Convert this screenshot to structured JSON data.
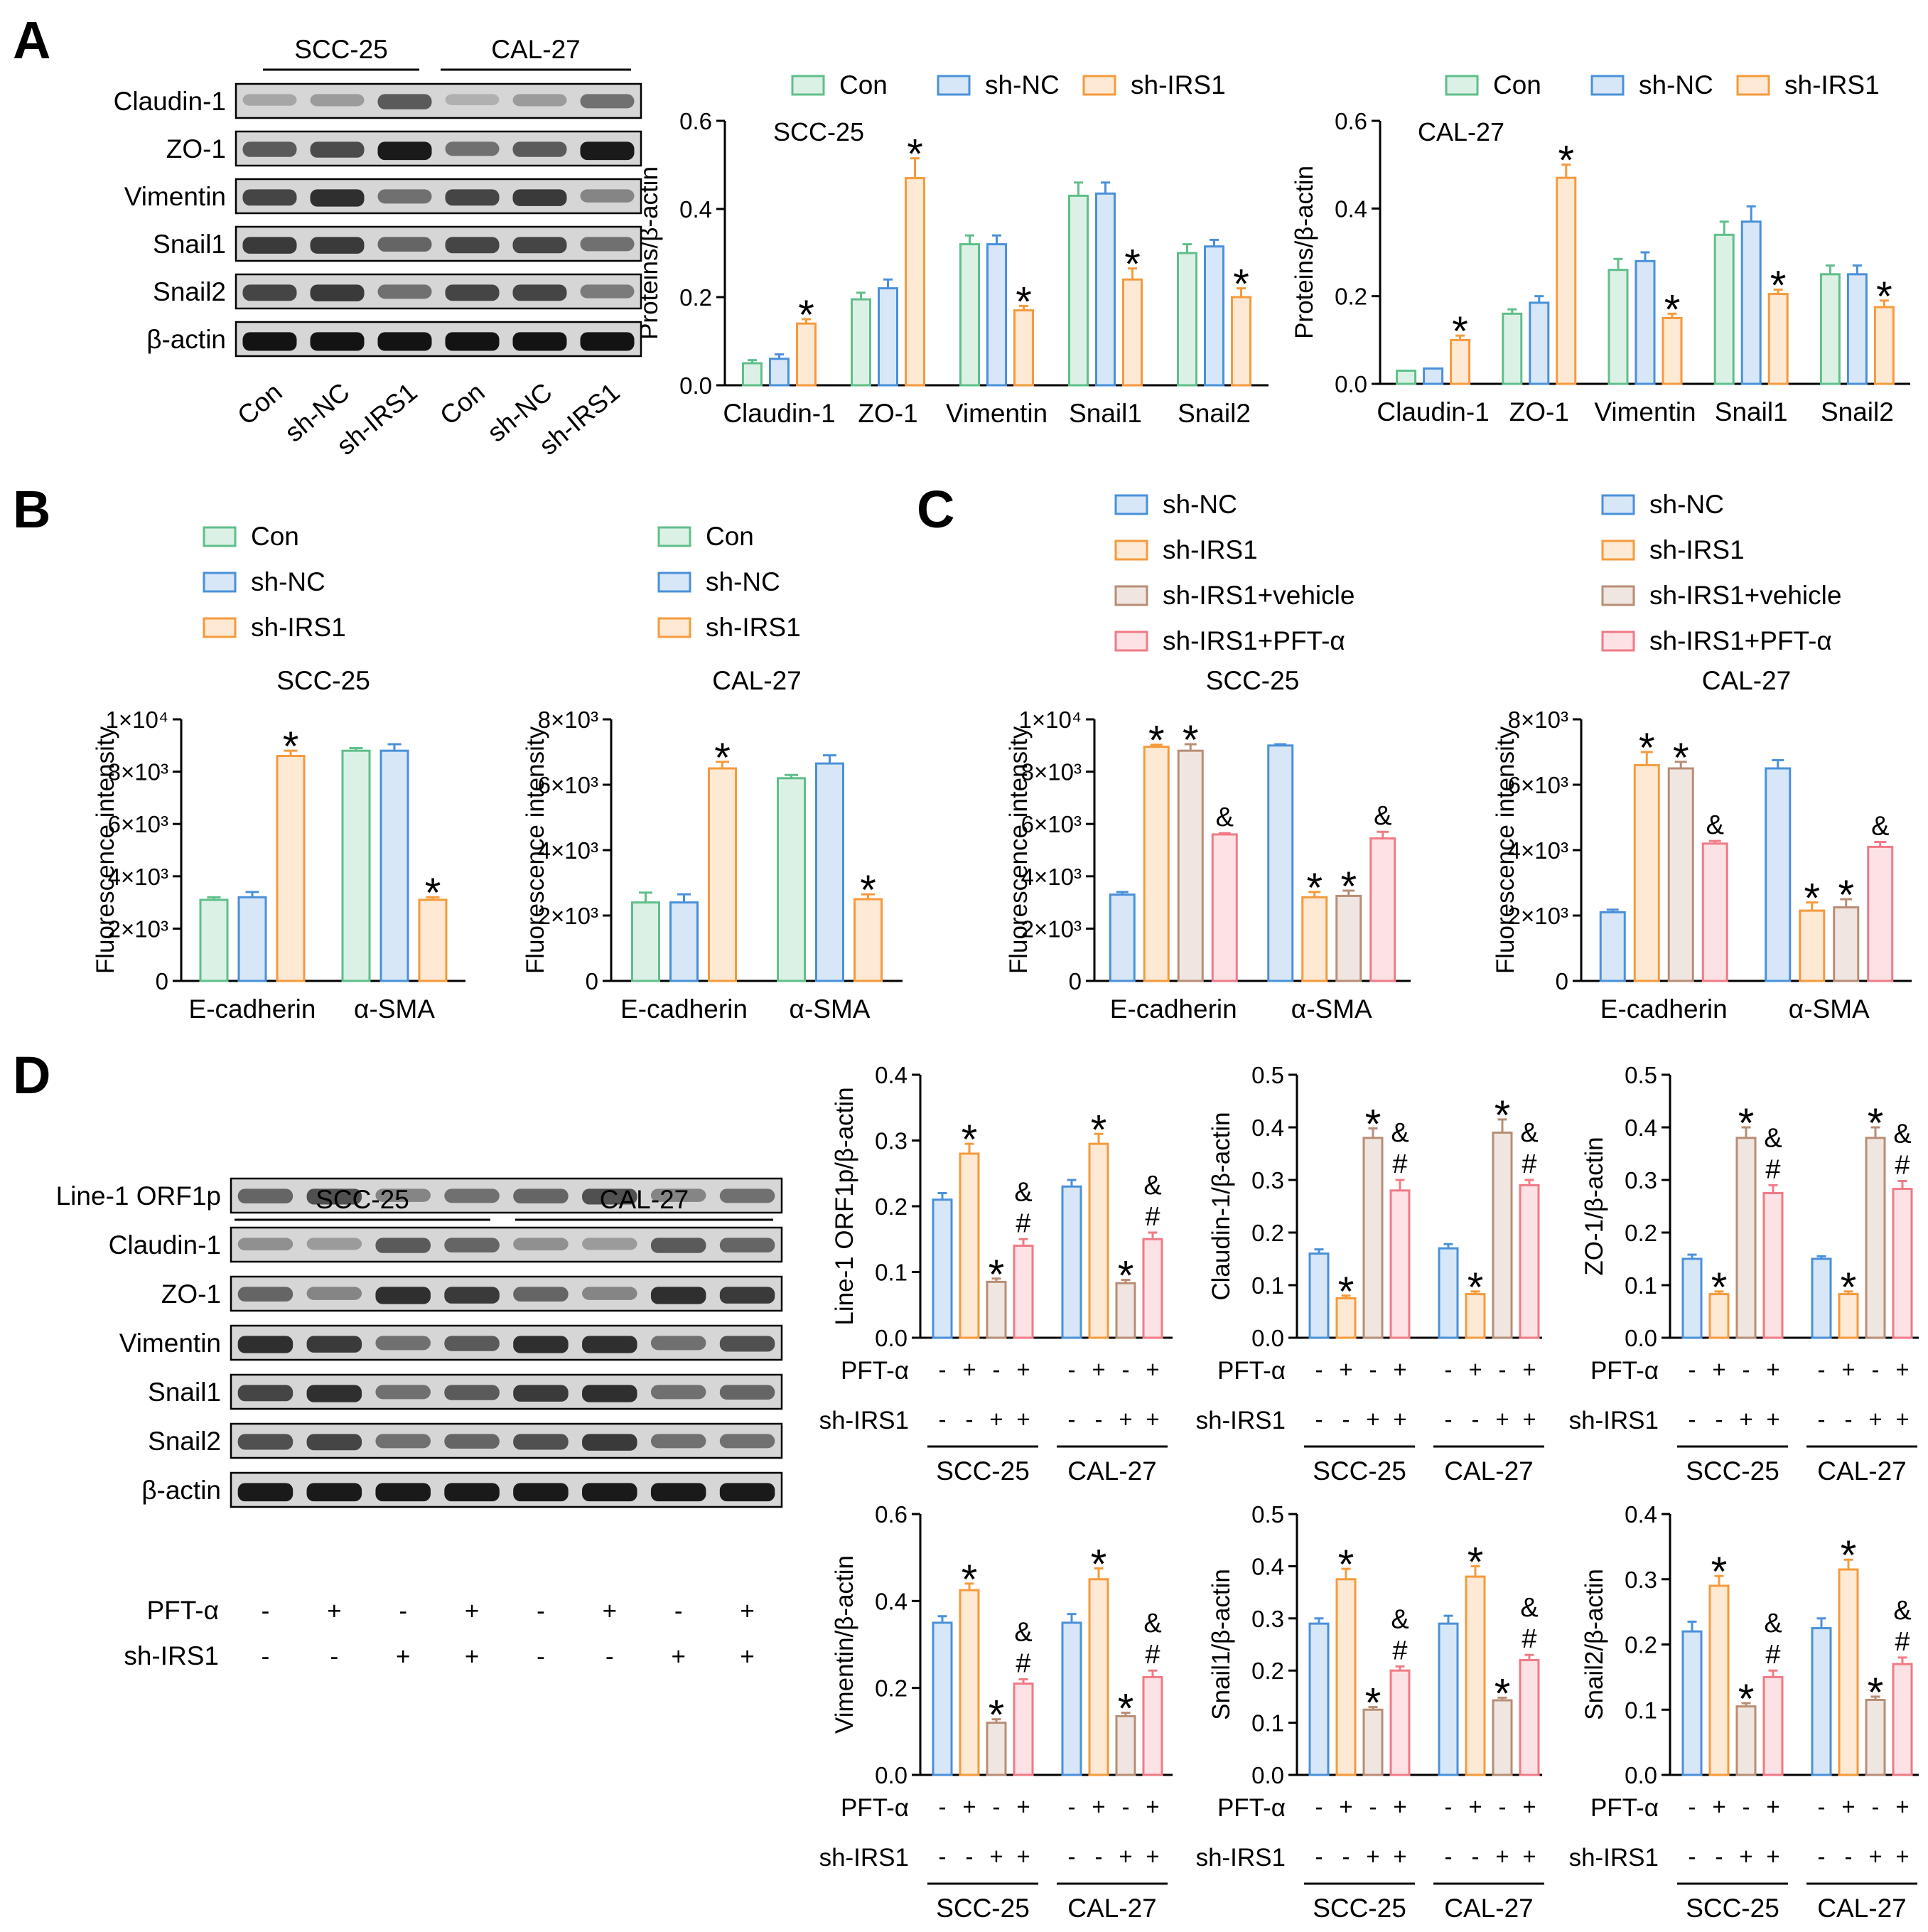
{
  "panels": {
    "A": {
      "label": "A"
    },
    "B": {
      "label": "B"
    },
    "C": {
      "label": "C"
    },
    "D": {
      "label": "D"
    }
  },
  "colors": {
    "Con": "#5fbf8a",
    "sh-NC": "#4a90d9",
    "sh-IRS1": "#f59a3c",
    "sh-IRS1+vehicle": "#b98d76",
    "sh-IRS1+PFT-α": "#f07a86"
  },
  "blots": {
    "A": {
      "groups": [
        "SCC-25",
        "CAL-27"
      ],
      "rows": [
        "Claudin-1",
        "ZO-1",
        "Vimentin",
        "Snail1",
        "Snail2",
        "β-actin"
      ],
      "lanes": [
        "Con",
        "sh-NC",
        "sh-IRS1",
        "Con",
        "sh-NC",
        "sh-IRS1"
      ],
      "band_intensity": [
        [
          0.3,
          0.35,
          0.65,
          0.25,
          0.35,
          0.55
        ],
        [
          0.65,
          0.72,
          0.95,
          0.55,
          0.65,
          0.95
        ],
        [
          0.75,
          0.85,
          0.55,
          0.75,
          0.8,
          0.45
        ],
        [
          0.8,
          0.8,
          0.6,
          0.75,
          0.75,
          0.55
        ],
        [
          0.75,
          0.8,
          0.55,
          0.75,
          0.75,
          0.5
        ],
        [
          0.98,
          0.98,
          0.98,
          0.98,
          0.98,
          0.98
        ]
      ]
    },
    "D": {
      "groups": [
        "SCC-25",
        "CAL-27"
      ],
      "rows": [
        "Line-1 ORF1p",
        "Claudin-1",
        "ZO-1",
        "Vimentin",
        "Snail1",
        "Snail2",
        "β-actin"
      ],
      "treat_labels": [
        "PFT-α",
        "sh-IRS1"
      ],
      "pft": [
        "-",
        "+",
        "-",
        "+",
        "-",
        "+",
        "-",
        "+"
      ],
      "shirs1": [
        "-",
        "-",
        "+",
        "+",
        "-",
        "-",
        "+",
        "+"
      ],
      "band_intensity": [
        [
          0.6,
          0.7,
          0.45,
          0.55,
          0.6,
          0.7,
          0.45,
          0.55
        ],
        [
          0.4,
          0.35,
          0.65,
          0.6,
          0.4,
          0.35,
          0.65,
          0.6
        ],
        [
          0.6,
          0.45,
          0.85,
          0.8,
          0.6,
          0.45,
          0.85,
          0.8
        ],
        [
          0.85,
          0.8,
          0.55,
          0.65,
          0.85,
          0.85,
          0.55,
          0.7
        ],
        [
          0.75,
          0.85,
          0.55,
          0.65,
          0.8,
          0.85,
          0.55,
          0.6
        ],
        [
          0.7,
          0.75,
          0.55,
          0.6,
          0.7,
          0.8,
          0.55,
          0.55
        ],
        [
          0.95,
          0.95,
          0.95,
          0.95,
          0.95,
          0.95,
          0.95,
          0.95
        ]
      ]
    }
  },
  "chart_data": [
    {
      "id": "A1",
      "type": "bar",
      "title": "SCC-25",
      "ylabel": "Proteins/β-actin",
      "ylim": [
        0,
        0.6
      ],
      "yticks": [
        "0.0",
        "0.2",
        "0.4",
        "0.6"
      ],
      "tick_values": [
        0,
        0.2,
        0.4,
        0.6
      ],
      "categories": [
        "Claudin-1",
        "ZO-1",
        "Vimentin",
        "Snail1",
        "Snail2"
      ],
      "legend": [
        "Con",
        "sh-NC",
        "sh-IRS1"
      ],
      "series": [
        {
          "name": "Con",
          "values": [
            0.05,
            0.195,
            0.32,
            0.43,
            0.3
          ],
          "err": [
            0.007,
            0.015,
            0.02,
            0.03,
            0.02
          ],
          "marks": [
            "",
            "",
            "",
            "",
            ""
          ]
        },
        {
          "name": "sh-NC",
          "values": [
            0.06,
            0.22,
            0.32,
            0.435,
            0.315
          ],
          "err": [
            0.01,
            0.02,
            0.02,
            0.025,
            0.015
          ],
          "marks": [
            "",
            "",
            "",
            "",
            ""
          ]
        },
        {
          "name": "sh-IRS1",
          "values": [
            0.14,
            0.47,
            0.17,
            0.24,
            0.2
          ],
          "err": [
            0.01,
            0.045,
            0.01,
            0.025,
            0.02
          ],
          "marks": [
            "*",
            "*",
            "*",
            "*",
            "*"
          ]
        }
      ]
    },
    {
      "id": "A2",
      "type": "bar",
      "title": "CAL-27",
      "ylabel": "Proteins/β-actin",
      "ylim": [
        0,
        0.6
      ],
      "yticks": [
        "0.0",
        "0.2",
        "0.4",
        "0.6"
      ],
      "tick_values": [
        0,
        0.2,
        0.4,
        0.6
      ],
      "categories": [
        "Claudin-1",
        "ZO-1",
        "Vimentin",
        "Snail1",
        "Snail2"
      ],
      "legend": [
        "Con",
        "sh-NC",
        "sh-IRS1"
      ],
      "series": [
        {
          "name": "Con",
          "values": [
            0.03,
            0.16,
            0.26,
            0.34,
            0.25
          ],
          "err": [
            0,
            0.01,
            0.025,
            0.03,
            0.02
          ],
          "marks": [
            "",
            "",
            "",
            "",
            ""
          ]
        },
        {
          "name": "sh-NC",
          "values": [
            0.035,
            0.185,
            0.28,
            0.37,
            0.25
          ],
          "err": [
            0,
            0.015,
            0.02,
            0.035,
            0.02
          ],
          "marks": [
            "",
            "",
            "",
            "",
            ""
          ]
        },
        {
          "name": "sh-IRS1",
          "values": [
            0.1,
            0.47,
            0.15,
            0.205,
            0.175
          ],
          "err": [
            0.01,
            0.03,
            0.01,
            0.01,
            0.015
          ],
          "marks": [
            "*",
            "*",
            "*",
            "*",
            "*"
          ]
        }
      ]
    },
    {
      "id": "B1",
      "type": "bar",
      "title": "SCC-25",
      "ylabel": "Fluorescence intensity",
      "ylim": [
        0,
        10000
      ],
      "yticks": [
        "0",
        "2×10³",
        "4×10³",
        "6×10³",
        "8×10³",
        "1×10⁴"
      ],
      "tick_values": [
        0,
        2000,
        4000,
        6000,
        8000,
        10000
      ],
      "categories": [
        "E-cadherin",
        "α-SMA"
      ],
      "legend": [
        "Con",
        "sh-NC",
        "sh-IRS1"
      ],
      "series": [
        {
          "name": "Con",
          "values": [
            3100,
            8800
          ],
          "err": [
            100,
            100
          ],
          "marks": [
            "",
            ""
          ]
        },
        {
          "name": "sh-NC",
          "values": [
            3200,
            8800
          ],
          "err": [
            200,
            250
          ],
          "marks": [
            "",
            ""
          ]
        },
        {
          "name": "sh-IRS1",
          "values": [
            8600,
            3100
          ],
          "err": [
            200,
            100
          ],
          "marks": [
            "*",
            "*"
          ]
        }
      ]
    },
    {
      "id": "B2",
      "type": "bar",
      "title": "CAL-27",
      "ylabel": "Fluorescence intensity",
      "ylim": [
        0,
        8000
      ],
      "yticks": [
        "0",
        "2×10³",
        "4×10³",
        "6×10³",
        "8×10³"
      ],
      "tick_values": [
        0,
        2000,
        4000,
        6000,
        8000
      ],
      "categories": [
        "E-cadherin",
        "α-SMA"
      ],
      "legend": [
        "Con",
        "sh-NC",
        "sh-IRS1"
      ],
      "series": [
        {
          "name": "Con",
          "values": [
            2400,
            6200
          ],
          "err": [
            300,
            100
          ],
          "marks": [
            "",
            ""
          ]
        },
        {
          "name": "sh-NC",
          "values": [
            2400,
            6650
          ],
          "err": [
            250,
            250
          ],
          "marks": [
            "",
            ""
          ]
        },
        {
          "name": "sh-IRS1",
          "values": [
            6500,
            2500
          ],
          "err": [
            200,
            150
          ],
          "marks": [
            "*",
            "*"
          ]
        }
      ]
    },
    {
      "id": "C1",
      "type": "bar",
      "title": "SCC-25",
      "ylabel": "Fluorescence intensity",
      "ylim": [
        0,
        10000
      ],
      "yticks": [
        "0",
        "2×10³",
        "4×10³",
        "6×10³",
        "8×10³",
        "1×10⁴"
      ],
      "tick_values": [
        0,
        2000,
        4000,
        6000,
        8000,
        10000
      ],
      "categories": [
        "E-cadherin",
        "α-SMA"
      ],
      "legend": [
        "sh-NC",
        "sh-IRS1",
        "sh-IRS1+vehicle",
        "sh-IRS1+PFT-α"
      ],
      "series": [
        {
          "name": "sh-NC",
          "values": [
            3300,
            9000
          ],
          "err": [
            100,
            50
          ],
          "marks": [
            "",
            ""
          ]
        },
        {
          "name": "sh-IRS1",
          "values": [
            8950,
            3200
          ],
          "err": [
            80,
            200
          ],
          "marks": [
            "*",
            "*"
          ]
        },
        {
          "name": "sh-IRS1+vehicle",
          "values": [
            8800,
            3250
          ],
          "err": [
            250,
            200
          ],
          "marks": [
            "*",
            "*"
          ]
        },
        {
          "name": "sh-IRS1+PFT-α",
          "values": [
            5600,
            5450
          ],
          "err": [
            50,
            250
          ],
          "marks": [
            "&",
            "&"
          ]
        }
      ]
    },
    {
      "id": "C2",
      "type": "bar",
      "title": "CAL-27",
      "ylabel": "Fluorescence intensity",
      "ylim": [
        0,
        8000
      ],
      "yticks": [
        "0",
        "2×10³",
        "4×10³",
        "6×10³",
        "8×10³"
      ],
      "tick_values": [
        0,
        2000,
        4000,
        6000,
        8000
      ],
      "categories": [
        "E-cadherin",
        "α-SMA"
      ],
      "legend": [
        "sh-NC",
        "sh-IRS1",
        "sh-IRS1+vehicle",
        "sh-IRS1+PFT-α"
      ],
      "series": [
        {
          "name": "sh-NC",
          "values": [
            2100,
            6500
          ],
          "err": [
            80,
            250
          ],
          "marks": [
            "",
            ""
          ]
        },
        {
          "name": "sh-IRS1",
          "values": [
            6600,
            2150
          ],
          "err": [
            400,
            250
          ],
          "marks": [
            "*",
            "*"
          ]
        },
        {
          "name": "sh-IRS1+vehicle",
          "values": [
            6500,
            2250
          ],
          "err": [
            200,
            250
          ],
          "marks": [
            "*",
            "*"
          ]
        },
        {
          "name": "sh-IRS1+PFT-α",
          "values": [
            4200,
            4100
          ],
          "err": [
            80,
            150
          ],
          "marks": [
            "&",
            "&"
          ]
        }
      ]
    },
    {
      "id": "D1",
      "type": "bar",
      "ylabel": "Line-1 ORF1p/β-actin",
      "ylim": [
        0,
        0.4
      ],
      "yticks": [
        "0.0",
        "0.1",
        "0.2",
        "0.3",
        "0.4"
      ],
      "tick_values": [
        0,
        0.1,
        0.2,
        0.3,
        0.4
      ],
      "groups": [
        "SCC-25",
        "CAL-27"
      ],
      "pft": [
        "-",
        "+",
        "-",
        "+"
      ],
      "shirs1": [
        "-",
        "-",
        "+",
        "+"
      ],
      "series_names": [
        "sh-NC",
        "sh-IRS1",
        "sh-IRS1+vehicle",
        "sh-IRS1+PFT-α"
      ],
      "values": [
        [
          0.21,
          0.28,
          0.085,
          0.14
        ],
        [
          0.23,
          0.295,
          0.083,
          0.15
        ]
      ],
      "err": [
        [
          0.01,
          0.015,
          0.005,
          0.01
        ],
        [
          0.01,
          0.015,
          0.005,
          0.01
        ]
      ],
      "marks": [
        [
          "",
          "*",
          "*",
          "&\n#"
        ],
        [
          "",
          "*",
          "*",
          "&\n#"
        ]
      ]
    },
    {
      "id": "D2",
      "type": "bar",
      "ylabel": "Claudin-1/β-actin",
      "ylim": [
        0,
        0.5
      ],
      "yticks": [
        "0.0",
        "0.1",
        "0.2",
        "0.3",
        "0.4",
        "0.5"
      ],
      "tick_values": [
        0,
        0.1,
        0.2,
        0.3,
        0.4,
        0.5
      ],
      "groups": [
        "SCC-25",
        "CAL-27"
      ],
      "pft": [
        "-",
        "+",
        "-",
        "+"
      ],
      "shirs1": [
        "-",
        "-",
        "+",
        "+"
      ],
      "series_names": [
        "sh-NC",
        "sh-IRS1",
        "sh-IRS1+vehicle",
        "sh-IRS1+PFT-α"
      ],
      "values": [
        [
          0.16,
          0.075,
          0.38,
          0.28
        ],
        [
          0.17,
          0.083,
          0.39,
          0.29
        ]
      ],
      "err": [
        [
          0.008,
          0.005,
          0.018,
          0.02
        ],
        [
          0.008,
          0.005,
          0.025,
          0.01
        ]
      ],
      "marks": [
        [
          "",
          "*",
          "*",
          "&\n#"
        ],
        [
          "",
          "*",
          "*",
          "&\n#"
        ]
      ]
    },
    {
      "id": "D3",
      "type": "bar",
      "ylabel": "ZO-1/β-actin",
      "ylim": [
        0,
        0.5
      ],
      "yticks": [
        "0.0",
        "0.1",
        "0.2",
        "0.3",
        "0.4",
        "0.5"
      ],
      "tick_values": [
        0,
        0.1,
        0.2,
        0.3,
        0.4,
        0.5
      ],
      "groups": [
        "SCC-25",
        "CAL-27"
      ],
      "pft": [
        "-",
        "+",
        "-",
        "+"
      ],
      "shirs1": [
        "-",
        "-",
        "+",
        "+"
      ],
      "series_names": [
        "sh-NC",
        "sh-IRS1",
        "sh-IRS1+vehicle",
        "sh-IRS1+PFT-α"
      ],
      "values": [
        [
          0.15,
          0.083,
          0.38,
          0.275
        ],
        [
          0.15,
          0.083,
          0.38,
          0.283
        ]
      ],
      "err": [
        [
          0.008,
          0.005,
          0.02,
          0.015
        ],
        [
          0.005,
          0.005,
          0.02,
          0.015
        ]
      ],
      "marks": [
        [
          "",
          "*",
          "*",
          "&\n#"
        ],
        [
          "",
          "*",
          "*",
          "&\n#"
        ]
      ]
    },
    {
      "id": "D4",
      "type": "bar",
      "ylabel": "Vimentin/β-actin",
      "ylim": [
        0,
        0.6
      ],
      "yticks": [
        "0.0",
        "0.2",
        "0.4",
        "0.6"
      ],
      "tick_values": [
        0,
        0.2,
        0.4,
        0.6
      ],
      "groups": [
        "SCC-25",
        "CAL-27"
      ],
      "pft": [
        "-",
        "+",
        "-",
        "+"
      ],
      "shirs1": [
        "-",
        "-",
        "+",
        "+"
      ],
      "series_names": [
        "sh-NC",
        "sh-IRS1",
        "sh-IRS1+vehicle",
        "sh-IRS1+PFT-α"
      ],
      "values": [
        [
          0.35,
          0.425,
          0.12,
          0.21
        ],
        [
          0.35,
          0.45,
          0.135,
          0.225
        ]
      ],
      "err": [
        [
          0.015,
          0.015,
          0.008,
          0.01
        ],
        [
          0.02,
          0.025,
          0.008,
          0.015
        ]
      ],
      "marks": [
        [
          "",
          "*",
          "*",
          "&\n#"
        ],
        [
          "",
          "*",
          "*",
          "&\n#"
        ]
      ]
    },
    {
      "id": "D5",
      "type": "bar",
      "ylabel": "Snail1/β-actin",
      "ylim": [
        0,
        0.5
      ],
      "yticks": [
        "0.0",
        "0.1",
        "0.2",
        "0.3",
        "0.4",
        "0.5"
      ],
      "tick_values": [
        0,
        0.1,
        0.2,
        0.3,
        0.4,
        0.5
      ],
      "groups": [
        "SCC-25",
        "CAL-27"
      ],
      "pft": [
        "-",
        "+",
        "-",
        "+"
      ],
      "shirs1": [
        "-",
        "-",
        "+",
        "+"
      ],
      "series_names": [
        "sh-NC",
        "sh-IRS1",
        "sh-IRS1+vehicle",
        "sh-IRS1+PFT-α"
      ],
      "values": [
        [
          0.29,
          0.375,
          0.125,
          0.2
        ],
        [
          0.29,
          0.38,
          0.143,
          0.22
        ]
      ],
      "err": [
        [
          0.01,
          0.02,
          0.005,
          0.008
        ],
        [
          0.015,
          0.02,
          0.005,
          0.01
        ]
      ],
      "marks": [
        [
          "",
          "*",
          "*",
          "&\n#"
        ],
        [
          "",
          "*",
          "*",
          "&\n#"
        ]
      ]
    },
    {
      "id": "D6",
      "type": "bar",
      "ylabel": "Snail2/β-actin",
      "ylim": [
        0,
        0.4
      ],
      "yticks": [
        "0.0",
        "0.1",
        "0.2",
        "0.3",
        "0.4"
      ],
      "tick_values": [
        0,
        0.1,
        0.2,
        0.3,
        0.4
      ],
      "groups": [
        "SCC-25",
        "CAL-27"
      ],
      "pft": [
        "-",
        "+",
        "-",
        "+"
      ],
      "shirs1": [
        "-",
        "-",
        "+",
        "+"
      ],
      "series_names": [
        "sh-NC",
        "sh-IRS1",
        "sh-IRS1+vehicle",
        "sh-IRS1+PFT-α"
      ],
      "values": [
        [
          0.22,
          0.29,
          0.105,
          0.15
        ],
        [
          0.225,
          0.315,
          0.115,
          0.17
        ]
      ],
      "err": [
        [
          0.015,
          0.015,
          0.005,
          0.01
        ],
        [
          0.015,
          0.015,
          0.005,
          0.01
        ]
      ],
      "marks": [
        [
          "",
          "*",
          "*",
          "&\n#"
        ],
        [
          "",
          "*",
          "*",
          "&\n#"
        ]
      ]
    }
  ]
}
